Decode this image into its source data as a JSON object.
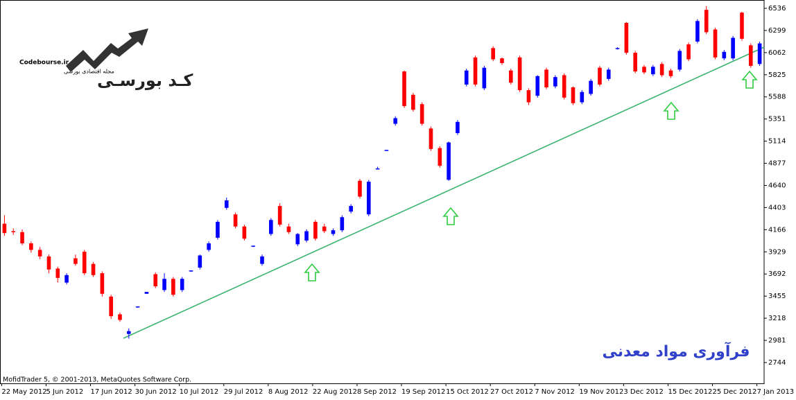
{
  "chart_data": {
    "type": "candlestick",
    "title": "فرآوری مواد معدنی",
    "copyright": "MofidTrader 5, © 2001-2013, MetaQuotes Software Corp.",
    "logo": {
      "site": "Codebourse.ir",
      "tagline": "مجله اقتصادی بورسی",
      "name": "کـد بورسـی"
    },
    "up_color": "#0000ff",
    "down_color": "#ff0000",
    "categories": [
      "22 May 2012",
      null,
      null,
      null,
      null,
      "5 Jun 2012",
      null,
      null,
      null,
      null,
      "17 Jun 2012",
      null,
      null,
      null,
      null,
      "30 Jun 2012",
      null,
      null,
      null,
      null,
      "10 Jul 2012",
      null,
      null,
      null,
      null,
      "29 Jul 2012",
      null,
      null,
      null,
      null,
      "8 Aug 2012",
      null,
      null,
      null,
      null,
      "22 Aug 2012",
      null,
      null,
      null,
      null,
      "8 Sep 2012",
      null,
      null,
      null,
      null,
      "19 Sep 2012",
      null,
      null,
      null,
      null,
      "15 Oct 2012",
      null,
      null,
      null,
      null,
      "27 Oct 2012",
      null,
      null,
      null,
      null,
      "7 Nov 2012",
      null,
      null,
      null,
      null,
      "19 Nov 2012",
      null,
      null,
      null,
      null,
      "3 Dec 2012",
      null,
      null,
      null,
      null,
      "15 Dec 2012",
      null,
      null,
      null,
      null,
      "25 Dec 2012",
      null,
      null,
      null,
      null,
      "7 Jan 2013"
    ],
    "open": [
      4230,
      4150,
      4140,
      4020,
      3950,
      3880,
      3750,
      3600,
      3860,
      3930,
      3800,
      3700,
      3450,
      3260,
      3050,
      3340,
      3480,
      3690,
      3520,
      3640,
      3520,
      3720,
      3760,
      3950,
      4080,
      4400,
      4330,
      4200,
      3990,
      3800,
      4120,
      4420,
      4200,
      4010,
      4050,
      4250,
      4200,
      4120,
      4160,
      4360,
      4690,
      4330,
      4820,
      5015,
      5300,
      5860,
      5610,
      5510,
      5250,
      5040,
      4700,
      5200,
      5720,
      6010,
      5680,
      6110,
      6000,
      5870,
      6010,
      5660,
      5600,
      5880,
      5700,
      5820,
      5690,
      5530,
      5620,
      5900,
      5780,
      6100,
      6380,
      6060,
      5910,
      5830,
      5940,
      5870,
      5880,
      6150,
      6180,
      6520,
      6310,
      6000,
      6000,
      6490,
      6140,
      5940
    ],
    "high": [
      4320,
      4180,
      4170,
      4040,
      3980,
      3900,
      3770,
      3700,
      3900,
      3950,
      3820,
      3720,
      3470,
      3280,
      3110,
      3345,
      3500,
      3710,
      3700,
      3660,
      3660,
      3730,
      3900,
      4040,
      4270,
      4510,
      4350,
      4220,
      3995,
      3900,
      4290,
      4450,
      4230,
      4130,
      4170,
      4270,
      4230,
      4180,
      4320,
      4440,
      4710,
      4700,
      4840,
      5020,
      5380,
      5870,
      5630,
      5530,
      5270,
      5060,
      5110,
      5340,
      5890,
      6030,
      5920,
      6130,
      6010,
      5890,
      6030,
      5680,
      5820,
      5900,
      5820,
      5840,
      5700,
      5660,
      5780,
      5920,
      5900,
      6120,
      6390,
      6080,
      5930,
      5930,
      5960,
      5890,
      6100,
      6170,
      6420,
      6560,
      6330,
      6090,
      6240,
      6500,
      6160,
      6180
    ],
    "low": [
      4100,
      4110,
      4000,
      3920,
      3850,
      3700,
      3600,
      3580,
      3780,
      3680,
      3660,
      3450,
      3210,
      3180,
      3000,
      3330,
      3480,
      3540,
      3500,
      3450,
      3500,
      3715,
      3740,
      3930,
      4060,
      4380,
      4180,
      4050,
      3980,
      3780,
      4100,
      4200,
      4120,
      3990,
      4030,
      4050,
      4130,
      4100,
      4140,
      4340,
      4500,
      4310,
      4810,
      5010,
      5280,
      5470,
      5430,
      5280,
      5010,
      4830,
      4690,
      5180,
      5700,
      5700,
      5660,
      5970,
      5930,
      5720,
      5640,
      5500,
      5580,
      5670,
      5680,
      5560,
      5500,
      5510,
      5600,
      5700,
      5760,
      6095,
      6040,
      5840,
      5830,
      5810,
      5800,
      5790,
      5860,
      5970,
      6160,
      6260,
      5990,
      5980,
      5980,
      6190,
      5900,
      5920
    ],
    "close": [
      4130,
      4140,
      4020,
      3950,
      3880,
      3740,
      3650,
      3680,
      3800,
      3700,
      3680,
      3480,
      3240,
      3200,
      3080,
      3345,
      3500,
      3560,
      3640,
      3470,
      3640,
      3730,
      3890,
      4020,
      4250,
      4480,
      4200,
      4070,
      3995,
      3880,
      4270,
      4220,
      4140,
      4120,
      4150,
      4070,
      4150,
      4160,
      4300,
      4420,
      4520,
      4680,
      4822,
      5020,
      5360,
      5490,
      5450,
      5300,
      5030,
      4850,
      5100,
      5320,
      5870,
      5720,
      5900,
      5990,
      5950,
      5740,
      5660,
      5530,
      5810,
      5690,
      5800,
      5580,
      5520,
      5640,
      5760,
      5720,
      5880,
      6110,
      6060,
      5860,
      5850,
      5910,
      5820,
      5810,
      6080,
      5990,
      6400,
      6280,
      6010,
      6070,
      6220,
      6210,
      5920,
      6160
    ],
    "ylim": [
      2521,
      6625
    ],
    "yticks": [
      6536,
      6299,
      6062,
      5825,
      5588,
      5351,
      5114,
      4877,
      4640,
      4403,
      4166,
      3929,
      3692,
      3455,
      3218,
      2981,
      2744
    ]
  }
}
